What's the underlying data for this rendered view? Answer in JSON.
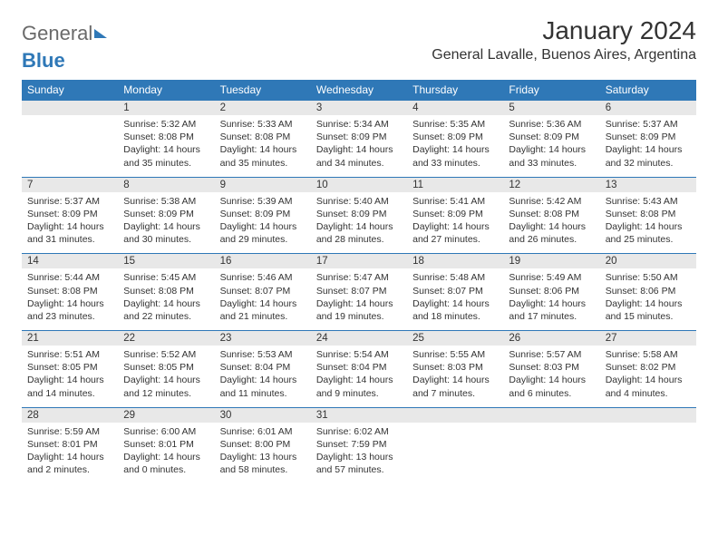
{
  "brand": {
    "part1": "General",
    "part2": "Blue"
  },
  "title": "January 2024",
  "location": "General Lavalle, Buenos Aires, Argentina",
  "colors": {
    "header_bg": "#2f78b7",
    "header_text": "#ffffff",
    "daynum_bg": "#e8e8e8",
    "row_border": "#2f78b7",
    "text": "#333333",
    "page_bg": "#ffffff"
  },
  "weekdays": [
    "Sunday",
    "Monday",
    "Tuesday",
    "Wednesday",
    "Thursday",
    "Friday",
    "Saturday"
  ],
  "weeks": [
    [
      null,
      {
        "n": "1",
        "sr": "Sunrise: 5:32 AM",
        "ss": "Sunset: 8:08 PM",
        "dl": "Daylight: 14 hours and 35 minutes."
      },
      {
        "n": "2",
        "sr": "Sunrise: 5:33 AM",
        "ss": "Sunset: 8:08 PM",
        "dl": "Daylight: 14 hours and 35 minutes."
      },
      {
        "n": "3",
        "sr": "Sunrise: 5:34 AM",
        "ss": "Sunset: 8:09 PM",
        "dl": "Daylight: 14 hours and 34 minutes."
      },
      {
        "n": "4",
        "sr": "Sunrise: 5:35 AM",
        "ss": "Sunset: 8:09 PM",
        "dl": "Daylight: 14 hours and 33 minutes."
      },
      {
        "n": "5",
        "sr": "Sunrise: 5:36 AM",
        "ss": "Sunset: 8:09 PM",
        "dl": "Daylight: 14 hours and 33 minutes."
      },
      {
        "n": "6",
        "sr": "Sunrise: 5:37 AM",
        "ss": "Sunset: 8:09 PM",
        "dl": "Daylight: 14 hours and 32 minutes."
      }
    ],
    [
      {
        "n": "7",
        "sr": "Sunrise: 5:37 AM",
        "ss": "Sunset: 8:09 PM",
        "dl": "Daylight: 14 hours and 31 minutes."
      },
      {
        "n": "8",
        "sr": "Sunrise: 5:38 AM",
        "ss": "Sunset: 8:09 PM",
        "dl": "Daylight: 14 hours and 30 minutes."
      },
      {
        "n": "9",
        "sr": "Sunrise: 5:39 AM",
        "ss": "Sunset: 8:09 PM",
        "dl": "Daylight: 14 hours and 29 minutes."
      },
      {
        "n": "10",
        "sr": "Sunrise: 5:40 AM",
        "ss": "Sunset: 8:09 PM",
        "dl": "Daylight: 14 hours and 28 minutes."
      },
      {
        "n": "11",
        "sr": "Sunrise: 5:41 AM",
        "ss": "Sunset: 8:09 PM",
        "dl": "Daylight: 14 hours and 27 minutes."
      },
      {
        "n": "12",
        "sr": "Sunrise: 5:42 AM",
        "ss": "Sunset: 8:08 PM",
        "dl": "Daylight: 14 hours and 26 minutes."
      },
      {
        "n": "13",
        "sr": "Sunrise: 5:43 AM",
        "ss": "Sunset: 8:08 PM",
        "dl": "Daylight: 14 hours and 25 minutes."
      }
    ],
    [
      {
        "n": "14",
        "sr": "Sunrise: 5:44 AM",
        "ss": "Sunset: 8:08 PM",
        "dl": "Daylight: 14 hours and 23 minutes."
      },
      {
        "n": "15",
        "sr": "Sunrise: 5:45 AM",
        "ss": "Sunset: 8:08 PM",
        "dl": "Daylight: 14 hours and 22 minutes."
      },
      {
        "n": "16",
        "sr": "Sunrise: 5:46 AM",
        "ss": "Sunset: 8:07 PM",
        "dl": "Daylight: 14 hours and 21 minutes."
      },
      {
        "n": "17",
        "sr": "Sunrise: 5:47 AM",
        "ss": "Sunset: 8:07 PM",
        "dl": "Daylight: 14 hours and 19 minutes."
      },
      {
        "n": "18",
        "sr": "Sunrise: 5:48 AM",
        "ss": "Sunset: 8:07 PM",
        "dl": "Daylight: 14 hours and 18 minutes."
      },
      {
        "n": "19",
        "sr": "Sunrise: 5:49 AM",
        "ss": "Sunset: 8:06 PM",
        "dl": "Daylight: 14 hours and 17 minutes."
      },
      {
        "n": "20",
        "sr": "Sunrise: 5:50 AM",
        "ss": "Sunset: 8:06 PM",
        "dl": "Daylight: 14 hours and 15 minutes."
      }
    ],
    [
      {
        "n": "21",
        "sr": "Sunrise: 5:51 AM",
        "ss": "Sunset: 8:05 PM",
        "dl": "Daylight: 14 hours and 14 minutes."
      },
      {
        "n": "22",
        "sr": "Sunrise: 5:52 AM",
        "ss": "Sunset: 8:05 PM",
        "dl": "Daylight: 14 hours and 12 minutes."
      },
      {
        "n": "23",
        "sr": "Sunrise: 5:53 AM",
        "ss": "Sunset: 8:04 PM",
        "dl": "Daylight: 14 hours and 11 minutes."
      },
      {
        "n": "24",
        "sr": "Sunrise: 5:54 AM",
        "ss": "Sunset: 8:04 PM",
        "dl": "Daylight: 14 hours and 9 minutes."
      },
      {
        "n": "25",
        "sr": "Sunrise: 5:55 AM",
        "ss": "Sunset: 8:03 PM",
        "dl": "Daylight: 14 hours and 7 minutes."
      },
      {
        "n": "26",
        "sr": "Sunrise: 5:57 AM",
        "ss": "Sunset: 8:03 PM",
        "dl": "Daylight: 14 hours and 6 minutes."
      },
      {
        "n": "27",
        "sr": "Sunrise: 5:58 AM",
        "ss": "Sunset: 8:02 PM",
        "dl": "Daylight: 14 hours and 4 minutes."
      }
    ],
    [
      {
        "n": "28",
        "sr": "Sunrise: 5:59 AM",
        "ss": "Sunset: 8:01 PM",
        "dl": "Daylight: 14 hours and 2 minutes."
      },
      {
        "n": "29",
        "sr": "Sunrise: 6:00 AM",
        "ss": "Sunset: 8:01 PM",
        "dl": "Daylight: 14 hours and 0 minutes."
      },
      {
        "n": "30",
        "sr": "Sunrise: 6:01 AM",
        "ss": "Sunset: 8:00 PM",
        "dl": "Daylight: 13 hours and 58 minutes."
      },
      {
        "n": "31",
        "sr": "Sunrise: 6:02 AM",
        "ss": "Sunset: 7:59 PM",
        "dl": "Daylight: 13 hours and 57 minutes."
      },
      null,
      null,
      null
    ]
  ]
}
